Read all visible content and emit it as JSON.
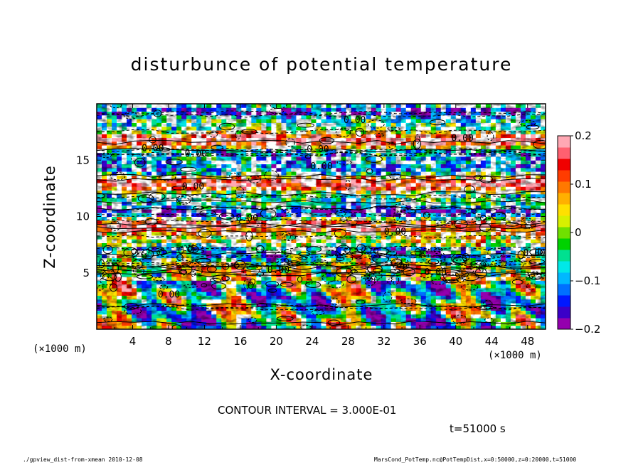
{
  "title": "disturbunce of potential temperature",
  "xlabel": "X-coordinate",
  "ylabel": "Z-coordinate",
  "x_unit": "(×1000 m)",
  "y_unit": "(×1000 m)",
  "contour_interval": "CONTOUR INTERVAL = 3.000E-01",
  "time_label": "t=51000 s",
  "footer_left": "./gpview_dist-from-xmean   2010-12-08",
  "footer_right": "MarsCond_PotTemp.nc@PotTempDist,x=0:50000,z=0:20000,t=51000",
  "chart_data": {
    "type": "heatmap",
    "xlim": [
      0,
      50
    ],
    "ylim": [
      0,
      20
    ],
    "x_ticks": [
      4,
      8,
      12,
      16,
      20,
      24,
      28,
      32,
      36,
      40,
      44,
      48
    ],
    "y_ticks": [
      5,
      10,
      15
    ],
    "colorbar": {
      "range": [
        -0.2,
        0.2
      ],
      "tick_values": [
        0.2,
        0.1,
        0,
        -0.1,
        -0.2
      ],
      "tick_labels": [
        "0.2",
        "0.1",
        "0",
        "−0.1",
        "−0.2"
      ],
      "colors": [
        "#9400ae",
        "#3a00c8",
        "#0018ff",
        "#0070ff",
        "#00b8ff",
        "#00e8e8",
        "#00e090",
        "#00d200",
        "#70e000",
        "#d8f000",
        "#ffe000",
        "#ffb000",
        "#ff7800",
        "#ff3c00",
        "#f00000",
        "#ff6070",
        "#ffa8b4"
      ]
    },
    "contour_labels": [
      {
        "x": 27.5,
        "z": 18.3,
        "text": "0.00"
      },
      {
        "x": 39.5,
        "z": 16.7,
        "text": "0.00"
      },
      {
        "x": 5.0,
        "z": 15.8,
        "text": "0.00"
      },
      {
        "x": 9.8,
        "z": 15.3,
        "text": "0.00"
      },
      {
        "x": 23.4,
        "z": 15.7,
        "text": "0.00"
      },
      {
        "x": 23.8,
        "z": 14.2,
        "text": "0.00"
      },
      {
        "x": 9.5,
        "z": 12.4,
        "text": "0.00"
      },
      {
        "x": 15.5,
        "z": 9.6,
        "text": "0.00"
      },
      {
        "x": 32.0,
        "z": 8.4,
        "text": "0.00"
      },
      {
        "x": 19.0,
        "z": 5.0,
        "text": "0.00"
      },
      {
        "x": 36.5,
        "z": 4.8,
        "text": "0.00"
      },
      {
        "x": 47.5,
        "z": 6.5,
        "text": "0.00"
      },
      {
        "x": 6.8,
        "z": 2.8,
        "text": "0.00"
      }
    ]
  }
}
